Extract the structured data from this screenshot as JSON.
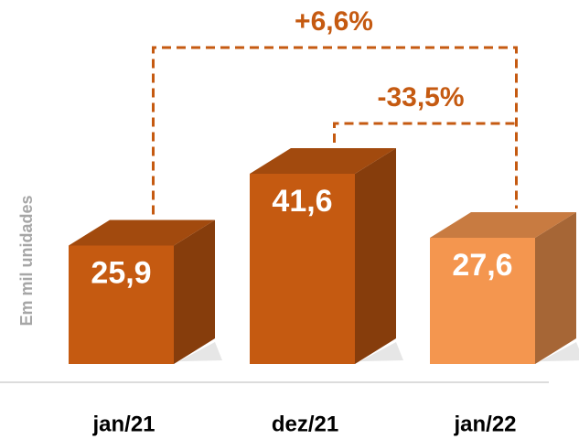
{
  "chart_data": {
    "type": "bar3d",
    "y_axis_label": "Em mil unidades",
    "categories": [
      "jan/21",
      "dez/21",
      "jan/22"
    ],
    "values": [
      25.9,
      41.6,
      27.6
    ],
    "value_labels": [
      "25,9",
      "41,6",
      "27,6"
    ],
    "colors": [
      "#c55a11",
      "#c55a11",
      "#f4964f"
    ],
    "annotations": [
      "+6,6%",
      "-33,5%"
    ]
  }
}
